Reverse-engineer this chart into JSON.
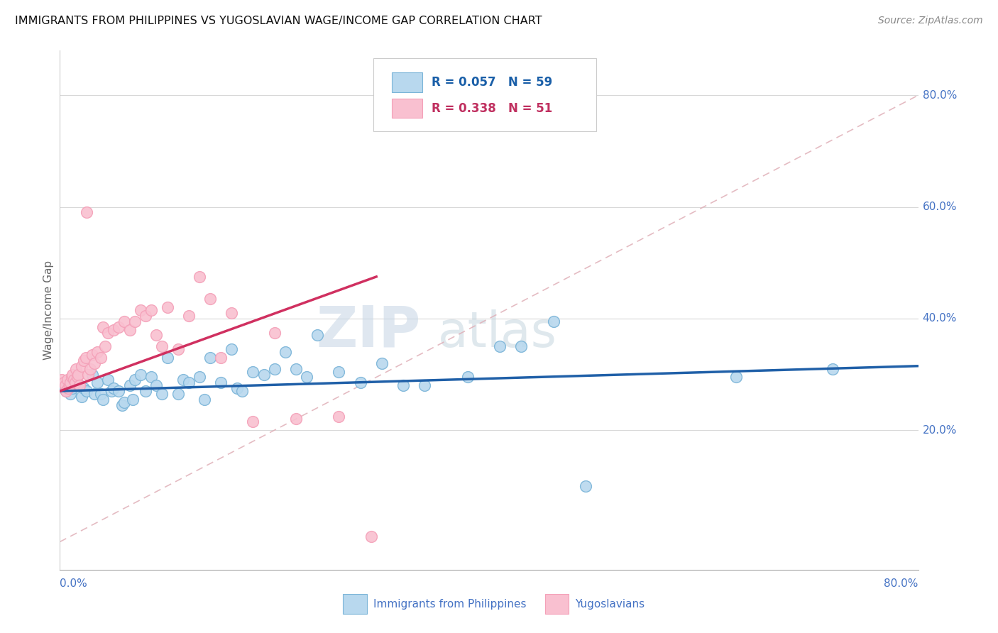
{
  "title": "IMMIGRANTS FROM PHILIPPINES VS YUGOSLAVIAN WAGE/INCOME GAP CORRELATION CHART",
  "source": "Source: ZipAtlas.com",
  "ylabel": "Wage/Income Gap",
  "ytick_labels": [
    "20.0%",
    "40.0%",
    "60.0%",
    "80.0%"
  ],
  "ytick_values": [
    0.2,
    0.4,
    0.6,
    0.8
  ],
  "xlim": [
    0.0,
    0.8
  ],
  "ylim": [
    -0.05,
    0.88
  ],
  "blue_color": "#7ab4d8",
  "pink_color": "#f4a0b8",
  "blue_face": "#b8d8ee",
  "pink_face": "#f9c0d0",
  "trend_blue": "#2060a8",
  "trend_pink": "#d03060",
  "diag_color": "#e0b0b8",
  "watermark_zip_color": "#c8d8e8",
  "watermark_atlas_color": "#b0c8e0",
  "blue_x": [
    0.004,
    0.006,
    0.008,
    0.01,
    0.012,
    0.015,
    0.018,
    0.02,
    0.022,
    0.025,
    0.03,
    0.032,
    0.035,
    0.038,
    0.04,
    0.045,
    0.048,
    0.05,
    0.055,
    0.058,
    0.06,
    0.065,
    0.068,
    0.07,
    0.075,
    0.08,
    0.085,
    0.09,
    0.095,
    0.1,
    0.11,
    0.115,
    0.12,
    0.13,
    0.135,
    0.14,
    0.15,
    0.16,
    0.165,
    0.17,
    0.18,
    0.19,
    0.2,
    0.21,
    0.22,
    0.23,
    0.24,
    0.26,
    0.28,
    0.3,
    0.32,
    0.34,
    0.38,
    0.41,
    0.43,
    0.46,
    0.49,
    0.63,
    0.72
  ],
  "blue_y": [
    0.28,
    0.27,
    0.285,
    0.265,
    0.275,
    0.29,
    0.28,
    0.26,
    0.275,
    0.27,
    0.3,
    0.265,
    0.285,
    0.265,
    0.255,
    0.29,
    0.27,
    0.275,
    0.27,
    0.245,
    0.25,
    0.28,
    0.255,
    0.29,
    0.3,
    0.27,
    0.295,
    0.28,
    0.265,
    0.33,
    0.265,
    0.29,
    0.285,
    0.295,
    0.255,
    0.33,
    0.285,
    0.345,
    0.275,
    0.27,
    0.305,
    0.3,
    0.31,
    0.34,
    0.31,
    0.295,
    0.37,
    0.305,
    0.285,
    0.32,
    0.28,
    0.28,
    0.295,
    0.35,
    0.35,
    0.395,
    0.1,
    0.295,
    0.31
  ],
  "pink_x": [
    0.002,
    0.004,
    0.005,
    0.006,
    0.007,
    0.008,
    0.009,
    0.01,
    0.011,
    0.012,
    0.013,
    0.014,
    0.015,
    0.016,
    0.017,
    0.018,
    0.02,
    0.022,
    0.024,
    0.026,
    0.028,
    0.03,
    0.032,
    0.035,
    0.038,
    0.04,
    0.042,
    0.045,
    0.05,
    0.055,
    0.06,
    0.065,
    0.07,
    0.075,
    0.08,
    0.085,
    0.09,
    0.095,
    0.1,
    0.11,
    0.12,
    0.13,
    0.14,
    0.15,
    0.16,
    0.18,
    0.2,
    0.22,
    0.26,
    0.29,
    0.025
  ],
  "pink_y": [
    0.29,
    0.285,
    0.28,
    0.27,
    0.29,
    0.275,
    0.28,
    0.285,
    0.295,
    0.3,
    0.29,
    0.285,
    0.31,
    0.295,
    0.3,
    0.28,
    0.315,
    0.325,
    0.33,
    0.3,
    0.31,
    0.335,
    0.32,
    0.34,
    0.33,
    0.385,
    0.35,
    0.375,
    0.38,
    0.385,
    0.395,
    0.38,
    0.395,
    0.415,
    0.405,
    0.415,
    0.37,
    0.35,
    0.42,
    0.345,
    0.405,
    0.475,
    0.435,
    0.33,
    0.41,
    0.215,
    0.375,
    0.22,
    0.225,
    0.01,
    0.59
  ],
  "blue_trend_x": [
    0.0,
    0.8
  ],
  "blue_trend_y": [
    0.27,
    0.315
  ],
  "pink_trend_x": [
    0.0,
    0.295
  ],
  "pink_trend_y": [
    0.27,
    0.475
  ]
}
